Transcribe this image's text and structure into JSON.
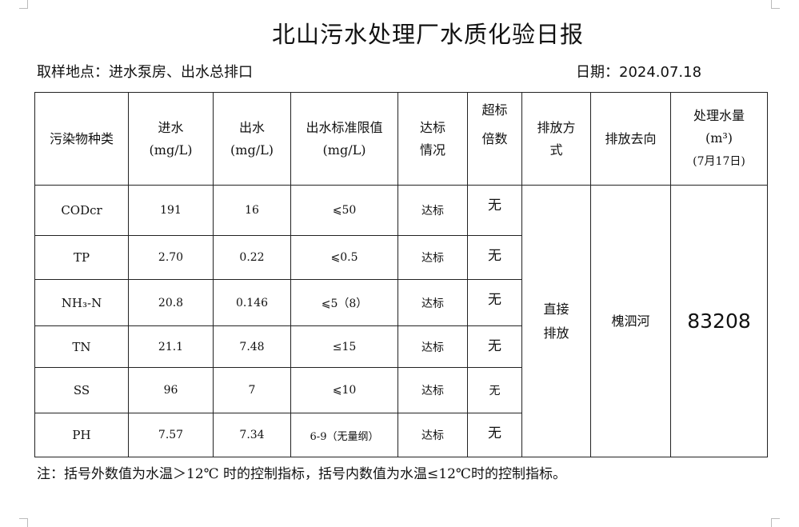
{
  "title": "北山污水处理厂水质化验日报",
  "location": "取样地点：进水泵房、出水总排口",
  "date": "日期：2024.07.18",
  "headers": {
    "pollutant": "污染物种类",
    "inflow": "进水",
    "inflow_unit": "(mg/L)",
    "outflow": "出水",
    "outflow_unit": "(mg/L)",
    "limit": "出水标准限值",
    "limit_unit": "(mg/L)",
    "status_1": "达标",
    "status_2": "情况",
    "exceed_1": "超标",
    "exceed_2": "倍数",
    "method_1": "排放方",
    "method_2": "式",
    "direction": "排放去向",
    "volume_1": "处理水量",
    "volume_2": "(m³)",
    "volume_3": "(7月17日)"
  },
  "rows": [
    {
      "name": "CODcr",
      "inflow": "191",
      "outflow": "16",
      "limit": "⩽50",
      "status": "达标",
      "exceed": "无"
    },
    {
      "name": "TP",
      "inflow": "2.70",
      "outflow": "0.22",
      "limit": "⩽0.5",
      "status": "达标",
      "exceed": "无"
    },
    {
      "name": "NH₃-N",
      "inflow": "20.8",
      "outflow": "0.146",
      "limit": "⩽5（8）",
      "status": "达标",
      "exceed": "无"
    },
    {
      "name": "TN",
      "inflow": "21.1",
      "outflow": "7.48",
      "limit": "≤15",
      "status": "达标",
      "exceed": "无"
    },
    {
      "name": "SS",
      "inflow": "96",
      "outflow": "7",
      "limit": "⩽10",
      "status": "达标",
      "exceed": "无"
    },
    {
      "name": "PH",
      "inflow": "7.57",
      "outflow": "7.34",
      "limit": "6-9（无量纲）",
      "status": "达标",
      "exceed": "无"
    }
  ],
  "merged": {
    "method_1": "直接",
    "method_2": "排放",
    "direction": "槐泗河",
    "volume": "83208"
  },
  "note": "注：括号外数值为水温＞12℃ 时的控制指标，括号内数值为水温≤12℃时的控制指标。"
}
